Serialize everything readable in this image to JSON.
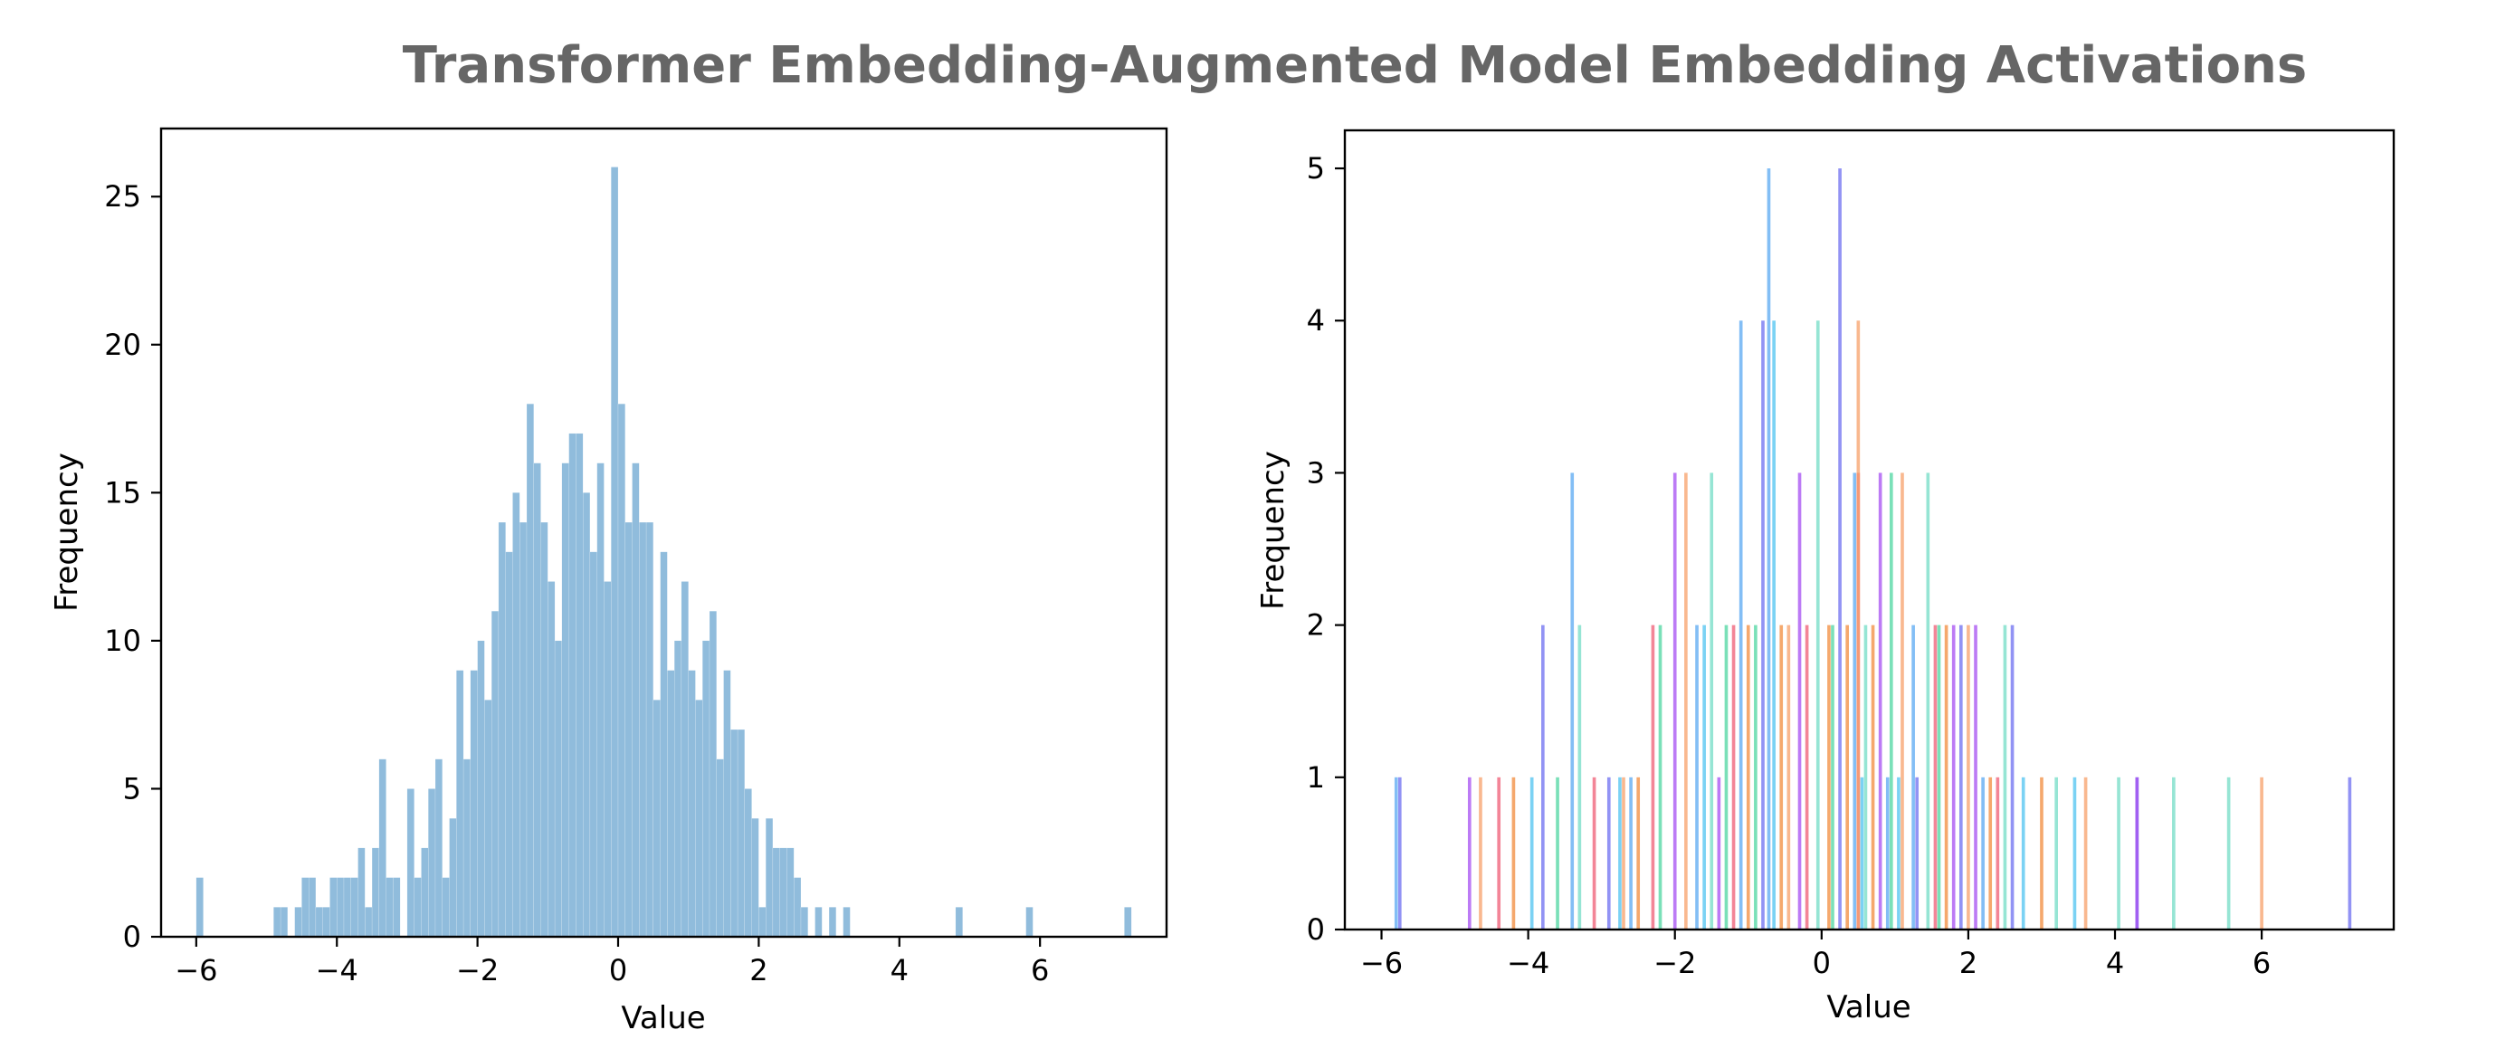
{
  "suptitle": "Transformer Embedding-Augmented Model Embedding Activations",
  "chart_data": [
    {
      "type": "bar",
      "panel": "left",
      "xlabel": "Value",
      "ylabel": "Frequency",
      "xlim": [
        -6.5,
        7.8
      ],
      "ylim": [
        0,
        27.3
      ],
      "xticks": [
        -6,
        -4,
        -2,
        0,
        2,
        4,
        6
      ],
      "xtick_labels": [
        "−6",
        "−4",
        "−2",
        "0",
        "2",
        "4",
        "6"
      ],
      "yticks": [
        0,
        5,
        10,
        15,
        20,
        25
      ],
      "ytick_labels": [
        "0",
        "5",
        "10",
        "15",
        "20",
        "25"
      ],
      "bar_color": "#90bcdc",
      "bin_start": -6.0,
      "bin_width": 0.1,
      "counts": [
        2,
        0,
        0,
        0,
        0,
        0,
        0,
        0,
        0,
        0,
        0,
        1,
        1,
        0,
        1,
        2,
        2,
        1,
        1,
        2,
        2,
        2,
        2,
        3,
        1,
        3,
        6,
        2,
        2,
        0,
        5,
        2,
        3,
        5,
        6,
        2,
        4,
        9,
        6,
        9,
        10,
        8,
        11,
        14,
        13,
        15,
        14,
        18,
        16,
        14,
        12,
        10,
        16,
        17,
        17,
        15,
        13,
        16,
        12,
        26,
        18,
        14,
        16,
        14,
        14,
        8,
        13,
        9,
        10,
        12,
        9,
        8,
        10,
        11,
        6,
        9,
        7,
        7,
        5,
        4,
        1,
        4,
        3,
        3,
        3,
        2,
        1,
        0,
        1,
        0,
        1,
        0,
        1,
        0,
        0,
        0,
        0,
        0,
        0,
        0,
        0,
        0,
        0,
        0,
        0,
        0,
        0,
        0,
        1,
        0,
        0,
        0,
        0,
        0,
        0,
        0,
        0,
        0,
        1,
        0,
        0,
        0,
        0,
        0,
        0,
        0,
        0,
        0,
        0,
        0,
        0,
        0,
        1
      ]
    },
    {
      "type": "bar",
      "panel": "right",
      "xlabel": "Value",
      "ylabel": "Frequency",
      "xlim": [
        -6.5,
        7.8
      ],
      "ylim": [
        0,
        5.25
      ],
      "xticks": [
        -6,
        -4,
        -2,
        0,
        2,
        4,
        6
      ],
      "xtick_labels": [
        "−6",
        "−4",
        "−2",
        "0",
        "2",
        "4",
        "6"
      ],
      "yticks": [
        0,
        1,
        2,
        3,
        4,
        5
      ],
      "ytick_labels": [
        "0",
        "1",
        "2",
        "3",
        "4",
        "5"
      ],
      "bar_opacity": 0.75,
      "palette": [
        "#5aa8f2",
        "#6d6ff0",
        "#a64ff2",
        "#ef5c74",
        "#f7a06a",
        "#f28b3c",
        "#73dcc6",
        "#4ed6a0",
        "#4fc3f0"
      ],
      "series": [
        {
          "color": "#5aa8f2",
          "x": [
            -5.8,
            -3.4,
            -1.1,
            -0.72,
            0.45,
            1.25,
            -2.6,
            0.9,
            2.2,
            -1.7
          ],
          "values": [
            1,
            3,
            4,
            5,
            3,
            2,
            1,
            1,
            1,
            2
          ]
        },
        {
          "color": "#6d6ff0",
          "x": [
            -5.75,
            -3.8,
            0.25,
            -0.8,
            1.3,
            2.6,
            4.3,
            7.2,
            -2.9,
            1.9
          ],
          "values": [
            1,
            2,
            5,
            4,
            1,
            2,
            1,
            1,
            1,
            2
          ]
        },
        {
          "color": "#a64ff2",
          "x": [
            -4.8,
            -2.0,
            -0.3,
            0.8,
            1.8,
            4.3,
            -1.4,
            2.1
          ],
          "values": [
            1,
            3,
            3,
            3,
            2,
            1,
            1,
            2
          ]
        },
        {
          "color": "#ef5c74",
          "x": [
            -4.4,
            -2.3,
            -1.2,
            -0.2,
            0.5,
            1.55,
            2.4,
            -3.1
          ],
          "values": [
            1,
            2,
            2,
            2,
            3,
            2,
            1,
            1
          ]
        },
        {
          "color": "#f7a06a",
          "x": [
            -4.65,
            -1.85,
            0.5,
            -0.45,
            1.1,
            2.0,
            3.6,
            6.0,
            -2.7
          ],
          "values": [
            1,
            3,
            4,
            2,
            3,
            2,
            1,
            1,
            1
          ]
        },
        {
          "color": "#f28b3c",
          "x": [
            -4.2,
            -2.5,
            -1.0,
            0.1,
            0.7,
            1.7,
            3.0,
            0.35,
            -0.55,
            2.3
          ],
          "values": [
            1,
            1,
            2,
            2,
            2,
            2,
            1,
            2,
            2,
            1
          ]
        },
        {
          "color": "#73dcc6",
          "x": [
            -3.3,
            -1.5,
            -0.05,
            0.6,
            1.45,
            2.5,
            3.2,
            4.05,
            4.8,
            5.55
          ],
          "values": [
            2,
            3,
            4,
            2,
            3,
            2,
            1,
            1,
            1,
            1
          ]
        },
        {
          "color": "#4ed6a0",
          "x": [
            -3.6,
            -1.3,
            -0.9,
            0.95,
            1.6,
            -2.2,
            0.15
          ],
          "values": [
            1,
            2,
            2,
            3,
            2,
            2,
            2
          ]
        },
        {
          "color": "#4fc3f0",
          "x": [
            -3.95,
            -2.75,
            -0.65,
            1.05,
            2.75,
            3.45,
            -1.6,
            0.55
          ],
          "values": [
            1,
            1,
            4,
            1,
            1,
            1,
            2,
            1
          ]
        }
      ]
    }
  ]
}
